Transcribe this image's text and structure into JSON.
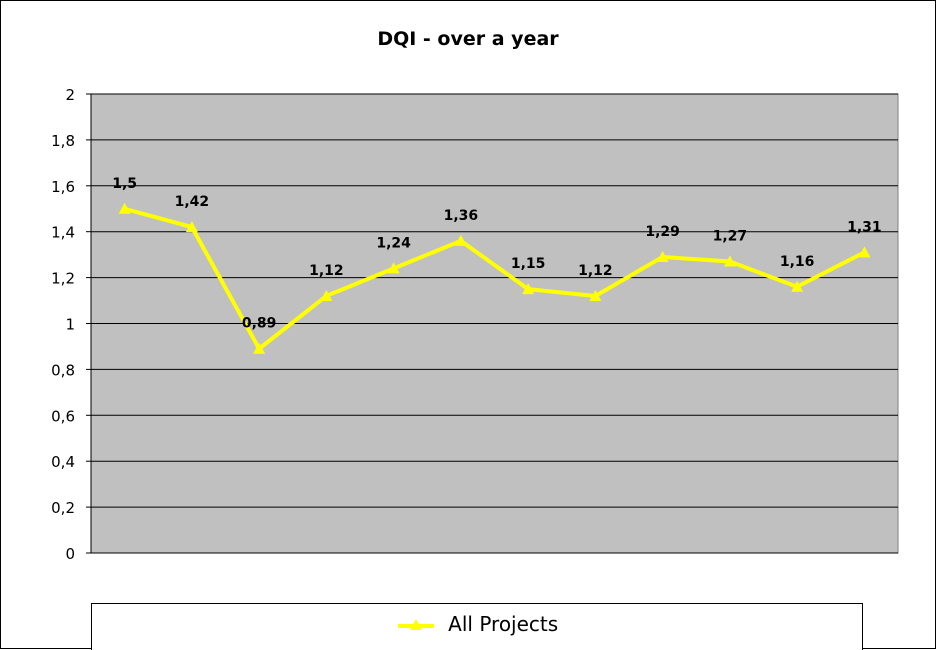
{
  "chart_data": {
    "type": "line",
    "title": "DQI - over a year",
    "xlabel": "",
    "ylabel": "",
    "ylim": [
      0,
      2
    ],
    "yticks": [
      "0",
      "0,2",
      "0,4",
      "0,6",
      "0,8",
      "1",
      "1,2",
      "1,4",
      "1,6",
      "1,8",
      "2"
    ],
    "grid": true,
    "legend_position": "bottom",
    "plot_background": "#c0c0c0",
    "series": [
      {
        "name": "All Projects",
        "color": "#ffff00",
        "marker": "triangle",
        "values": [
          1.5,
          1.42,
          0.89,
          1.12,
          1.24,
          1.36,
          1.15,
          1.12,
          1.29,
          1.27,
          1.16,
          1.31
        ],
        "labels": [
          "1,5",
          "1,42",
          "0,89",
          "1,12",
          "1,24",
          "1,36",
          "1,15",
          "1,12",
          "1,29",
          "1,27",
          "1,16",
          "1,31"
        ]
      }
    ]
  }
}
